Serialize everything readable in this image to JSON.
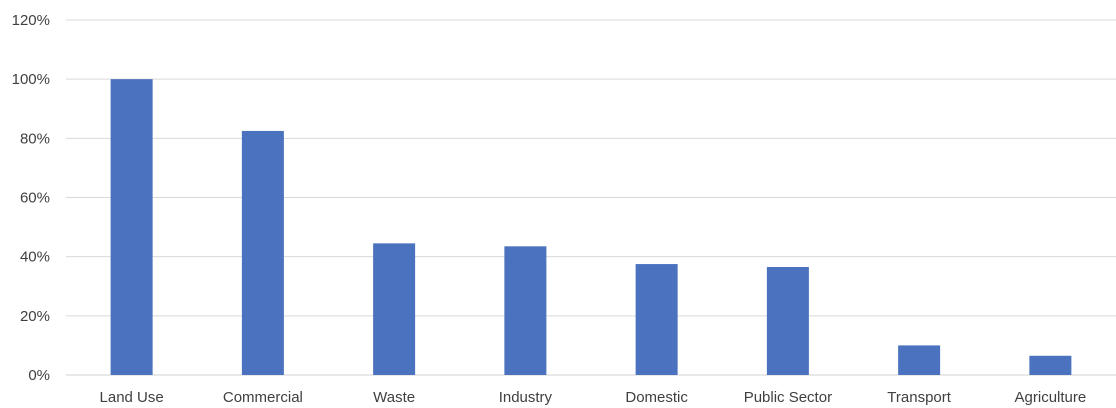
{
  "chart_data": {
    "type": "bar",
    "categories": [
      "Land Use",
      "Commercial",
      "Waste",
      "Industry",
      "Domestic",
      "Public Sector",
      "Transport",
      "Agriculture"
    ],
    "values": [
      100,
      82.5,
      44.5,
      43.5,
      37.5,
      36.5,
      10,
      6.5
    ],
    "ylim": [
      0,
      120
    ],
    "yticks": [
      0,
      20,
      40,
      60,
      80,
      100,
      120
    ],
    "ytick_labels": [
      "0%",
      "20%",
      "40%",
      "60%",
      "80%",
      "100%",
      "120%"
    ],
    "title": "",
    "xlabel": "",
    "ylabel": "",
    "grid": true,
    "legend": "none",
    "colors": {
      "bar": "#4a72be",
      "grid": "#d9d9d9",
      "text": "#404040"
    }
  }
}
